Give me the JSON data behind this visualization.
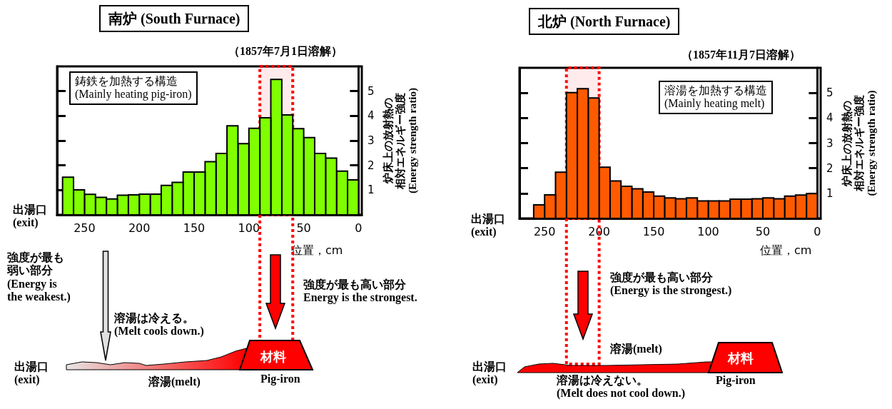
{
  "chart_data": [
    {
      "type": "histogram",
      "title": "南炉 (South Furnace)",
      "subtitle": "（1857年7月1日溶解）",
      "xlabel": "位置，cm",
      "ylabel": "炉床上の放射熱の相対エネルギー強度\n(Energy strength ratio)",
      "bins": [
        0,
        10,
        20,
        30,
        40,
        50,
        60,
        70,
        80,
        90,
        100,
        110,
        120,
        130,
        140,
        150,
        160,
        170,
        180,
        190,
        200,
        210,
        220,
        230,
        240,
        250,
        260,
        270
      ],
      "values": [
        1.41,
        1.77,
        2.29,
        2.48,
        3.12,
        3.48,
        4.04,
        5.47,
        3.92,
        3.5,
        2.88,
        3.6,
        2.48,
        2.15,
        1.73,
        1.73,
        1.31,
        1.19,
        0.84,
        0.84,
        0.81,
        0.79,
        0.64,
        0.71,
        0.83,
        1.01,
        1.52
      ],
      "color": "#80ff00",
      "xlim": [
        275,
        -3
      ],
      "xticks": [
        250,
        200,
        150,
        100,
        50,
        0
      ],
      "ylim": [
        0,
        6
      ],
      "yticks": [
        1,
        2,
        3,
        4,
        5
      ],
      "tick_labels": "xy",
      "bands": [
        {
          "axis": "x",
          "from": 90,
          "to": 60,
          "color": "#ff0000"
        }
      ],
      "annotations": [
        "鋳鉄を加熱する構造\n(Mainly heating pig-iron)",
        "出湯口\n(exit)",
        "強度が最も弱い部分\n(Energy is\nthe weakest.)",
        "溶湯は冷える。\n(Melt cools down.)",
        "強度が最も高い部分\nEnergy is the strongest.",
        "出湯口\n(exit)",
        "溶湯(melt)",
        "材料",
        "Pig-iron"
      ]
    },
    {
      "type": "histogram",
      "title": "北炉 (North Furnace)",
      "subtitle": "（1857年11月7日溶解）",
      "xlabel": "位置，cm",
      "ylabel": "炉床上の放射熱の相対エネルギー強度\n(Energy strength ratio)",
      "bins": [
        0,
        10,
        20,
        30,
        40,
        50,
        60,
        70,
        80,
        90,
        100,
        110,
        120,
        130,
        140,
        150,
        160,
        170,
        180,
        190,
        200,
        210,
        220,
        230,
        240,
        250,
        260
      ],
      "values": [
        0.99,
        0.93,
        0.89,
        0.78,
        0.82,
        0.78,
        0.77,
        0.77,
        0.7,
        0.7,
        0.7,
        0.82,
        0.78,
        0.82,
        0.89,
        1.05,
        1.18,
        1.28,
        1.49,
        2.04,
        4.8,
        5.17,
        5.01,
        1.84,
        0.94,
        0.54
      ],
      "color": "#ff5a00",
      "xlim": [
        273,
        -3
      ],
      "xticks": [
        250,
        200,
        150,
        100,
        50,
        0
      ],
      "ylim": [
        0,
        6
      ],
      "yticks": [
        1,
        2,
        3,
        4,
        5
      ],
      "tick_labels": "xy",
      "bands": [
        {
          "axis": "x",
          "from": 230,
          "to": 200,
          "color": "#ff0000"
        }
      ],
      "annotations": [
        "溶湯を加熱する構造\n(Mainly heating melt)",
        "出湯口\n(exit)",
        "強度が最も高い部分\n(Energy is the strongest.)",
        "溶湯(melt)",
        "出湯口\n(exit)",
        "溶湯は冷えない。\n(Melt does not cool down.)",
        "材料",
        "Pig-iron"
      ]
    }
  ]
}
